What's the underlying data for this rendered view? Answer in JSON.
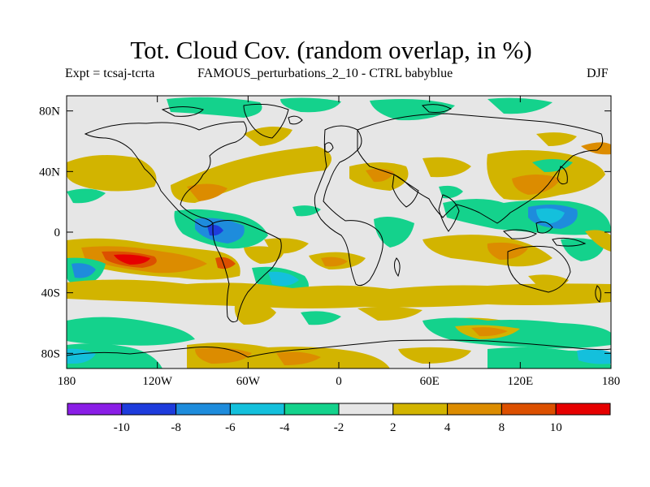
{
  "header": {
    "title": "Tot. Cloud Cov. (random overlap, in %)",
    "expt": "Expt = tcsaj-tcrta",
    "perturbation": "FAMOUS_perturbations_2_10 - CTRL babyblue",
    "season": "DJF"
  },
  "map": {
    "lat_labels": [
      "80N",
      "40N",
      "0",
      "40S",
      "80S"
    ],
    "lon_labels": [
      "180",
      "120W",
      "60W",
      "0",
      "60E",
      "120E",
      "180"
    ],
    "background_color": "#e6e6e6"
  },
  "colorbar": {
    "labels": [
      "-10",
      "-8",
      "-6",
      "-4",
      "-2",
      "2",
      "4",
      "8",
      "10"
    ],
    "colors": [
      "#8a1ee6",
      "#1e3cdc",
      "#1e8cdc",
      "#14c0dc",
      "#14d28c",
      "#e6e6e6",
      "#d2b400",
      "#dc8c00",
      "#dc5000",
      "#e60000"
    ]
  }
}
